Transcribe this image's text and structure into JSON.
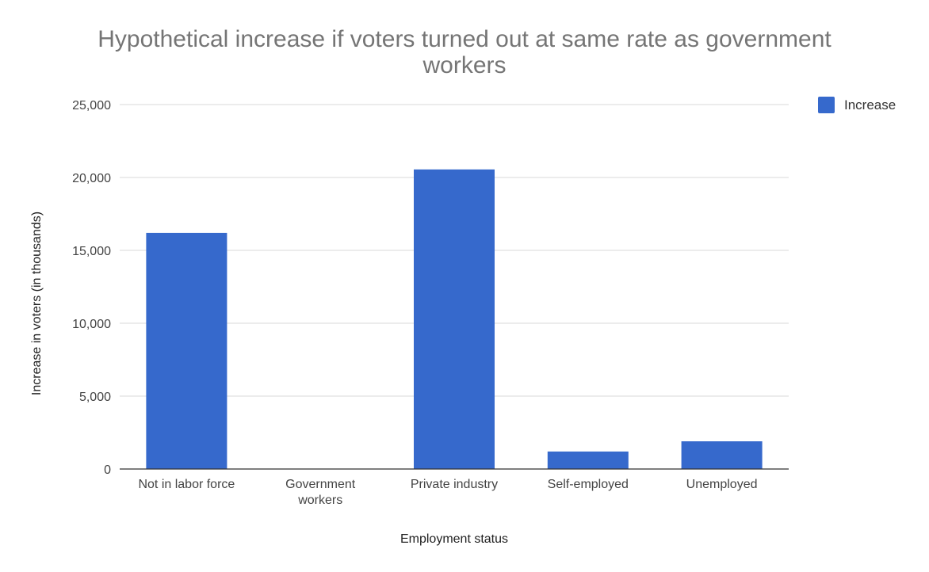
{
  "chart_data": {
    "type": "bar",
    "title_lines": [
      "Hypothetical increase if voters turned out at same rate as government",
      "workers"
    ],
    "xlabel": "Employment status",
    "ylabel": "Increase in voters (in thousands)",
    "categories": [
      [
        "Not in labor force"
      ],
      [
        "Government",
        "workers"
      ],
      [
        "Private industry"
      ],
      [
        "Self-employed"
      ],
      [
        "Unemployed"
      ]
    ],
    "series": [
      {
        "name": "Increase",
        "color": "#3669CC",
        "values": [
          16200,
          0,
          20550,
          1200,
          1900
        ]
      }
    ],
    "ylim": [
      0,
      25000
    ],
    "yticks": [
      0,
      5000,
      10000,
      15000,
      20000,
      25000
    ],
    "ytick_labels": [
      "0",
      "5,000",
      "10,000",
      "15,000",
      "20,000",
      "25,000"
    ],
    "grid": true,
    "legend_position": "top-right"
  }
}
